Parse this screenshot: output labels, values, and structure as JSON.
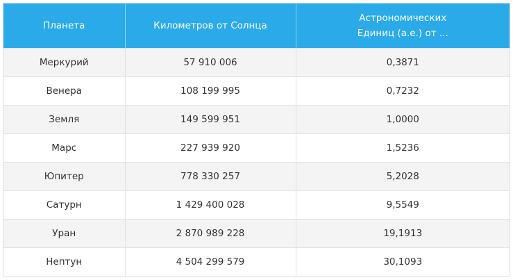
{
  "table": {
    "headers": [
      "Планета",
      "Километров от Солнца",
      "Астрономических Единиц (а.е.)  от ..."
    ],
    "rows": [
      [
        "Меркурий",
        "57 910 006",
        "0,3871"
      ],
      [
        "Венера",
        "108 199 995",
        "0,7232"
      ],
      [
        "Земля",
        "149 599 951",
        "1,0000"
      ],
      [
        "Марс",
        "227 939 920",
        "1,5236"
      ],
      [
        "Юпитер",
        "778 330 257",
        "5,2028"
      ],
      [
        "Сатурн",
        "1 429 400 028",
        "9,5549"
      ],
      [
        "Уран",
        "2 870 989 228",
        "19,1913"
      ],
      [
        "Нептун",
        "4 504 299 579",
        "30,1093"
      ]
    ]
  },
  "colors": {
    "header_bg": "#2aaae9",
    "header_text": "#ffffff",
    "row_alt_bg": "#f4f4f4",
    "border": "#e2e2e2"
  }
}
